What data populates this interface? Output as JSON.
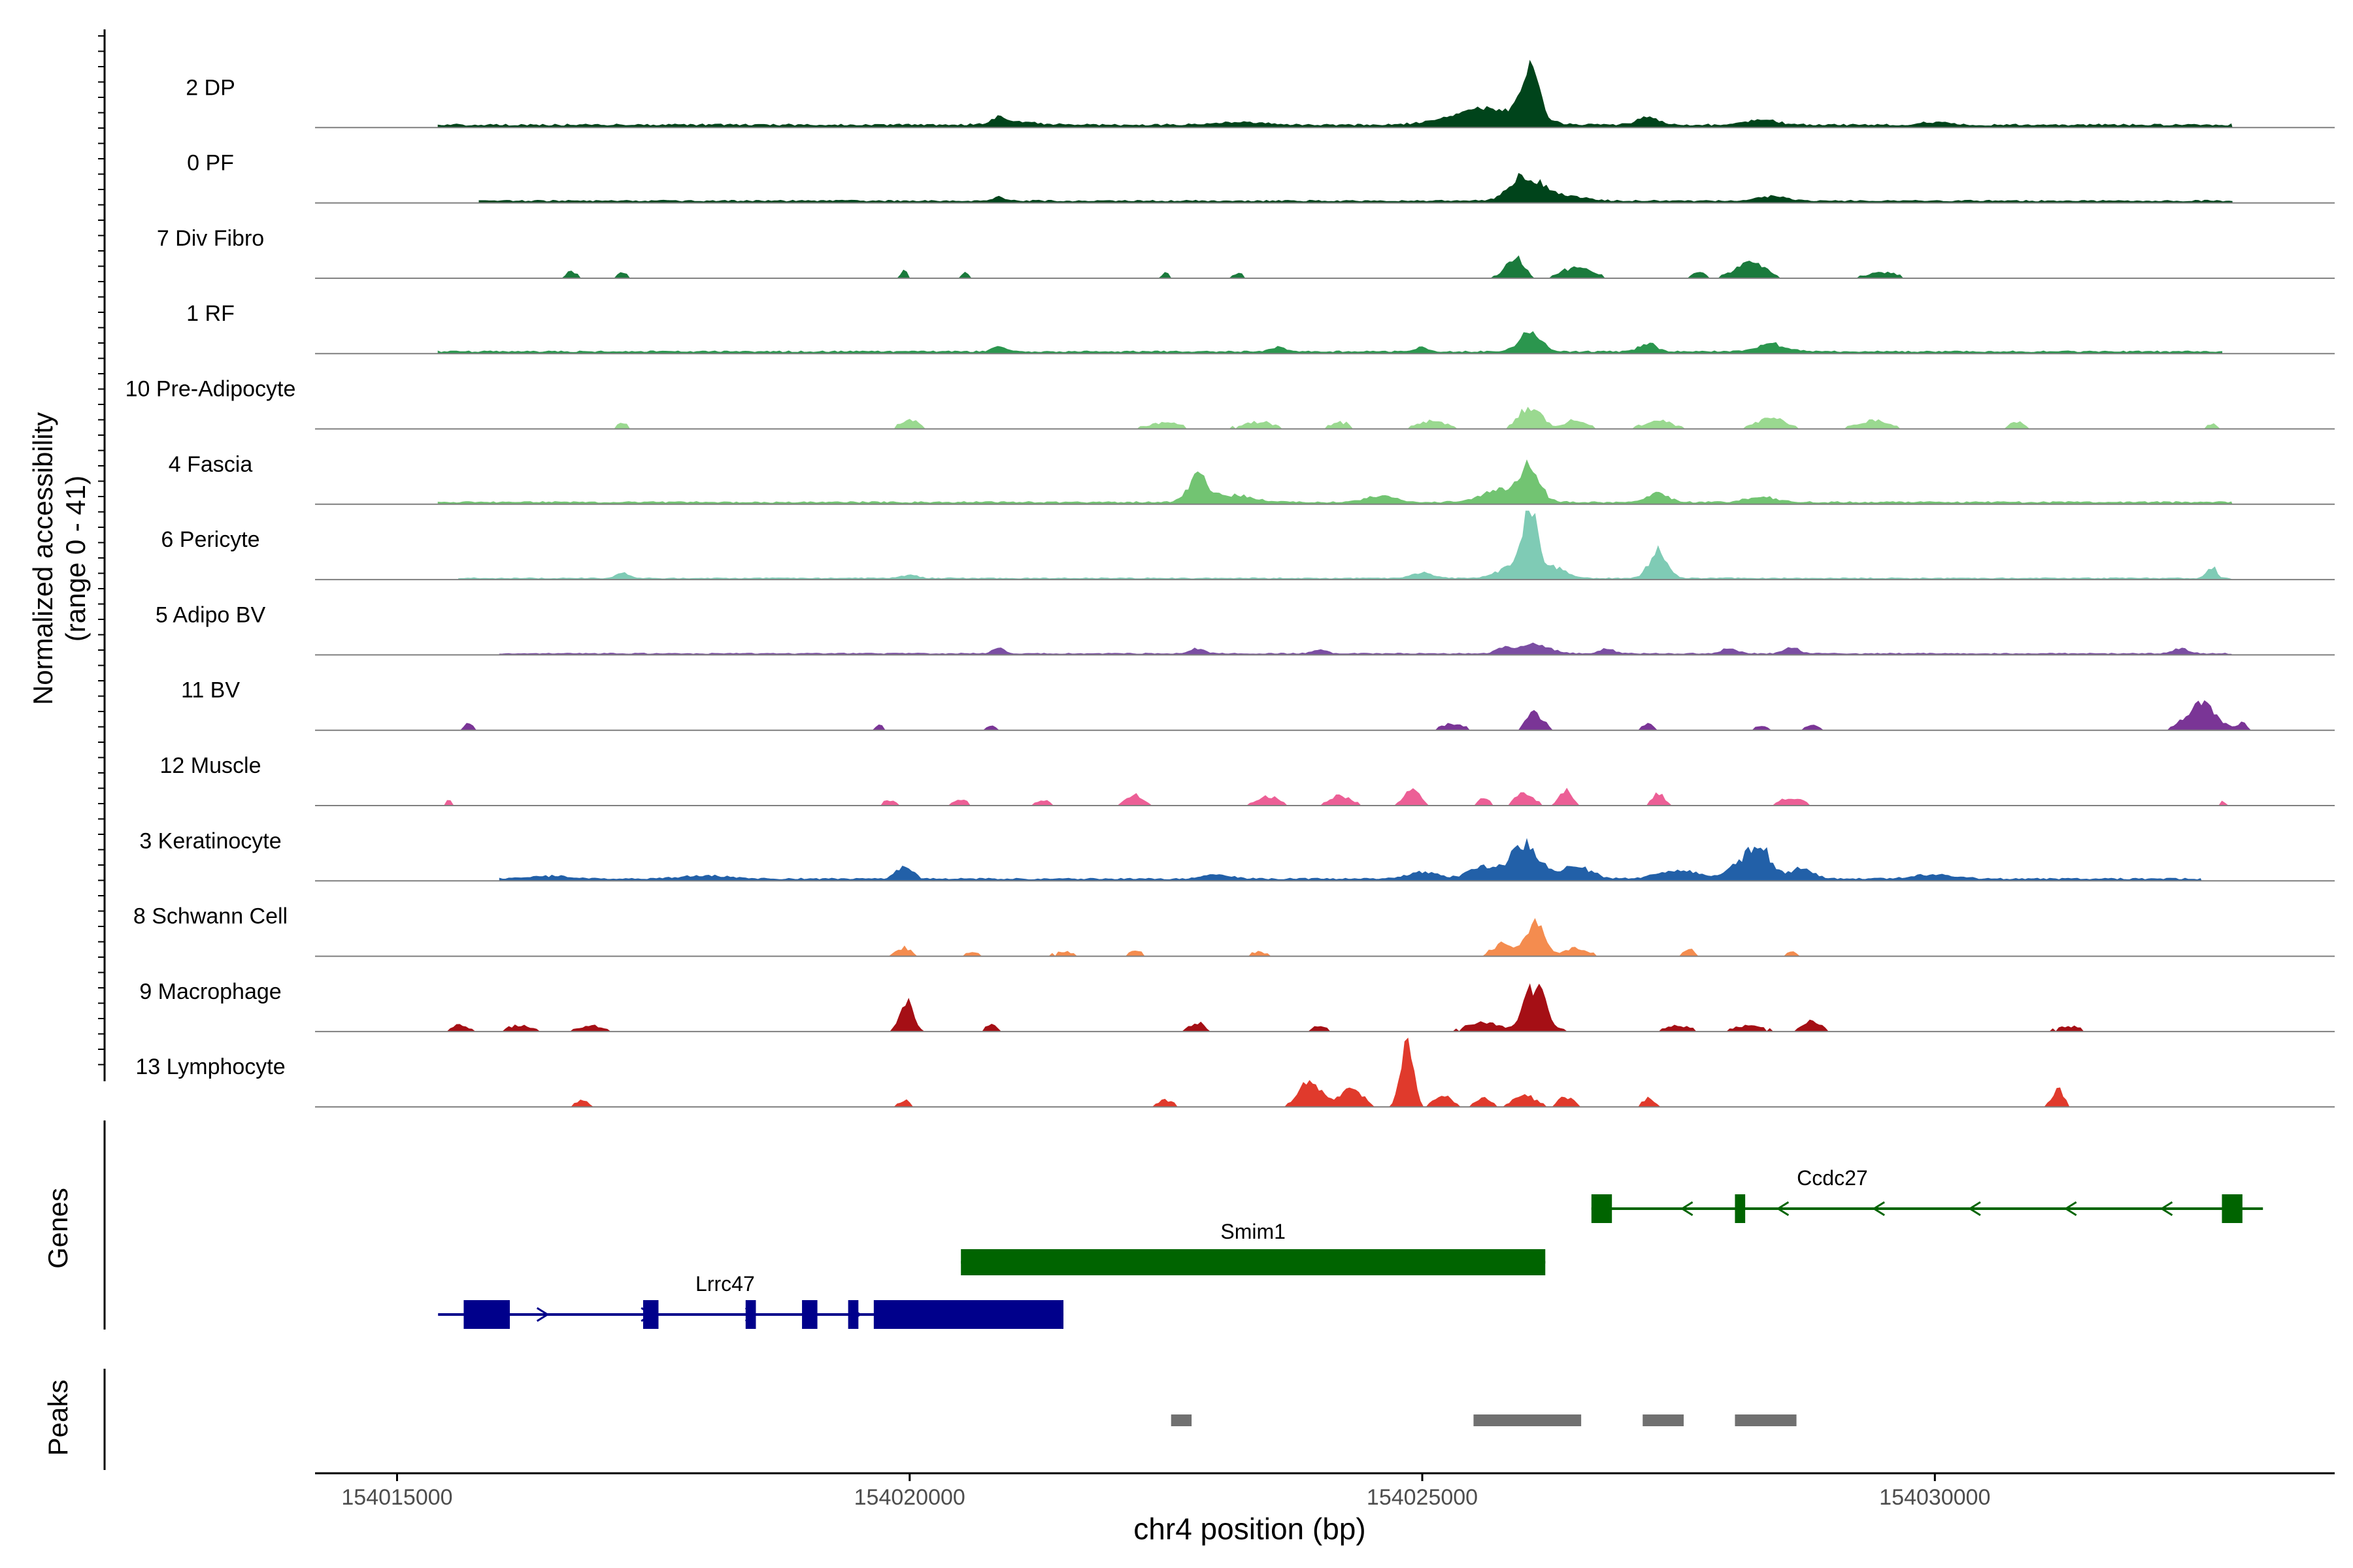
{
  "chart_data": {
    "type": "area",
    "chromosome": "chr4",
    "xlabel": "chr4 position (bp)",
    "ylabel": [
      "Normalized accessibility",
      "(range 0 - 41)"
    ],
    "y_range": [
      0,
      41
    ],
    "xlim": [
      154014200,
      154033900
    ],
    "x_ticks": [
      154015000,
      154020000,
      154025000,
      154030000
    ],
    "x_tick_labels": [
      "154015000",
      "154020000",
      "154025000",
      "154030000"
    ],
    "tracks": [
      {
        "name": "2 DP",
        "color": "#00441b",
        "style": "continuous",
        "base": 0.4,
        "peaks": [
          [
            154020870,
            0.9,
            70
          ],
          [
            154021000,
            0.5,
            300
          ],
          [
            154023200,
            0.4,
            400
          ],
          [
            154025500,
            1.0,
            400
          ],
          [
            154026050,
            7.5,
            120
          ],
          [
            154025700,
            1.5,
            500
          ],
          [
            154027200,
            1.2,
            150
          ],
          [
            154028300,
            0.9,
            200
          ],
          [
            154030000,
            0.4,
            200
          ]
        ],
        "range": [
          154015400,
          154032900
        ]
      },
      {
        "name": "0 PF",
        "color": "#00441b",
        "style": "continuous",
        "base": 0.3,
        "peaks": [
          [
            154020870,
            0.7,
            80
          ],
          [
            154026000,
            3.4,
            200
          ],
          [
            154026300,
            1.0,
            300
          ],
          [
            154028400,
            0.7,
            200
          ]
        ],
        "range": [
          154015800,
          154032900
        ]
      },
      {
        "name": "7 Div Fibro",
        "color": "#1a7a3c",
        "style": "segmented",
        "base": 0.2,
        "peaks": [
          [
            154016700,
            1.1,
            60
          ],
          [
            154017200,
            0.8,
            60
          ],
          [
            154019950,
            1.0,
            50
          ],
          [
            154020550,
            0.8,
            50
          ],
          [
            154022500,
            0.8,
            50
          ],
          [
            154023200,
            0.8,
            50
          ],
          [
            154025900,
            3.0,
            120
          ],
          [
            154026500,
            1.5,
            200
          ],
          [
            154027700,
            1.0,
            80
          ],
          [
            154028200,
            2.2,
            200
          ],
          [
            154029500,
            0.8,
            200
          ]
        ],
        "range": [
          154016400,
          154030600
        ]
      },
      {
        "name": "1 RF",
        "color": "#2b964e",
        "style": "continuous",
        "base": 0.3,
        "peaks": [
          [
            154020870,
            0.8,
            80
          ],
          [
            154023600,
            0.6,
            100
          ],
          [
            154025000,
            0.6,
            80
          ],
          [
            154026050,
            2.8,
            150
          ],
          [
            154027200,
            1.2,
            120
          ],
          [
            154028400,
            1.1,
            200
          ]
        ],
        "range": [
          154015400,
          154032800
        ]
      },
      {
        "name": "10 Pre-Adipocyte",
        "color": "#9ad990",
        "style": "segmented",
        "base": 0.2,
        "peaks": [
          [
            154017200,
            0.8,
            80
          ],
          [
            154020000,
            1.3,
            120
          ],
          [
            154022500,
            1.0,
            200
          ],
          [
            154023400,
            1.0,
            200
          ],
          [
            154024200,
            0.9,
            120
          ],
          [
            154025100,
            1.2,
            200
          ],
          [
            154026050,
            3.2,
            150
          ],
          [
            154026500,
            1.4,
            150
          ],
          [
            154027300,
            1.1,
            200
          ],
          [
            154028400,
            1.6,
            200
          ],
          [
            154029400,
            1.3,
            200
          ],
          [
            154030800,
            1.0,
            100
          ],
          [
            154032700,
            0.8,
            60
          ]
        ],
        "range": [
          154017000,
          154032900
        ]
      },
      {
        "name": "4 Fascia",
        "color": "#72c472",
        "style": "continuous",
        "base": 0.3,
        "peaks": [
          [
            154022800,
            3.6,
            120
          ],
          [
            154023100,
            1.2,
            300
          ],
          [
            154024600,
            1.0,
            200
          ],
          [
            154025800,
            1.8,
            300
          ],
          [
            154026050,
            4.8,
            130
          ],
          [
            154027300,
            1.3,
            150
          ],
          [
            154028300,
            0.8,
            200
          ]
        ],
        "range": [
          154015400,
          154032900
        ]
      },
      {
        "name": "6 Pericyte",
        "color": "#7fcbb5",
        "style": "continuous",
        "base": 0.2,
        "peaks": [
          [
            154017200,
            0.9,
            80
          ],
          [
            154020000,
            0.6,
            100
          ],
          [
            154025000,
            0.8,
            150
          ],
          [
            154025900,
            2.0,
            200
          ],
          [
            154026050,
            10.0,
            100
          ],
          [
            154026300,
            1.5,
            150
          ],
          [
            154027300,
            4.2,
            120
          ],
          [
            154032700,
            1.8,
            60
          ]
        ],
        "range": [
          154015600,
          154032900
        ]
      },
      {
        "name": "5 Adipo BV",
        "color": "#7b4ea3",
        "style": "continuous",
        "base": 0.2,
        "peaks": [
          [
            154020870,
            1.0,
            70
          ],
          [
            154022800,
            0.7,
            100
          ],
          [
            154024000,
            0.6,
            100
          ],
          [
            154025800,
            0.8,
            100
          ],
          [
            154026100,
            1.5,
            200
          ],
          [
            154026800,
            0.8,
            100
          ],
          [
            154028000,
            0.8,
            100
          ],
          [
            154028600,
            0.9,
            100
          ],
          [
            154032400,
            0.8,
            100
          ]
        ],
        "range": [
          154016000,
          154032900
        ]
      },
      {
        "name": "11 BV",
        "color": "#7a3596",
        "style": "segmented",
        "base": 0.0,
        "peaks": [
          [
            154015700,
            1.0,
            60
          ],
          [
            154019700,
            0.8,
            60
          ],
          [
            154020800,
            0.8,
            60
          ],
          [
            154025300,
            1.0,
            150
          ],
          [
            154026100,
            2.6,
            120
          ],
          [
            154027200,
            0.9,
            80
          ],
          [
            154028300,
            0.7,
            80
          ],
          [
            154028800,
            0.8,
            80
          ],
          [
            154032600,
            4.0,
            200
          ],
          [
            154033000,
            1.0,
            60
          ]
        ],
        "range": [
          154015500,
          154033100
        ]
      },
      {
        "name": "12 Muscle",
        "color": "#ec5f96",
        "style": "segmented",
        "base": 0.0,
        "peaks": [
          [
            154015500,
            0.8,
            40
          ],
          [
            154019800,
            0.8,
            80
          ],
          [
            154020500,
            0.8,
            100
          ],
          [
            154021300,
            0.8,
            100
          ],
          [
            154022200,
            1.5,
            120
          ],
          [
            154023500,
            1.3,
            150
          ],
          [
            154024200,
            1.5,
            150
          ],
          [
            154024900,
            2.8,
            100
          ],
          [
            154025600,
            1.2,
            80
          ],
          [
            154026000,
            2.0,
            120
          ],
          [
            154026400,
            2.5,
            80
          ],
          [
            154027300,
            1.8,
            80
          ],
          [
            154028600,
            1.2,
            150
          ],
          [
            154032800,
            0.6,
            40
          ]
        ],
        "range": [
          154015400,
          154032900
        ]
      },
      {
        "name": "3 Keratinocyte",
        "color": "#2260a8",
        "style": "continuous",
        "base": 0.3,
        "peaks": [
          [
            154019950,
            2.2,
            100
          ],
          [
            154016500,
            0.4,
            300
          ],
          [
            154018000,
            0.5,
            300
          ],
          [
            154023000,
            0.6,
            200
          ],
          [
            154025000,
            1.0,
            200
          ],
          [
            154025600,
            1.8,
            200
          ],
          [
            154026000,
            5.0,
            200
          ],
          [
            154026500,
            2.0,
            200
          ],
          [
            154027500,
            1.2,
            300
          ],
          [
            154028100,
            2.2,
            150
          ],
          [
            154028300,
            4.6,
            150
          ],
          [
            154028700,
            1.6,
            150
          ],
          [
            154030000,
            0.6,
            300
          ]
        ],
        "range": [
          154016000,
          154032600
        ]
      },
      {
        "name": "8 Schwann Cell",
        "color": "#f48c4f",
        "style": "segmented",
        "base": 0.2,
        "peaks": [
          [
            154019950,
            1.2,
            100
          ],
          [
            154020600,
            0.6,
            100
          ],
          [
            154021500,
            0.7,
            100
          ],
          [
            154022200,
            0.7,
            100
          ],
          [
            154023400,
            0.6,
            100
          ],
          [
            154025800,
            1.8,
            150
          ],
          [
            154026100,
            5.2,
            120
          ],
          [
            154026500,
            1.2,
            150
          ],
          [
            154027600,
            1.0,
            80
          ],
          [
            154028600,
            0.7,
            60
          ]
        ],
        "range": [
          154015600,
          154030500
        ]
      },
      {
        "name": "9 Macrophage",
        "color": "#a50f15",
        "style": "segmented",
        "base": 0.2,
        "peaks": [
          [
            154015600,
            1.1,
            100
          ],
          [
            154016200,
            0.9,
            150
          ],
          [
            154016900,
            0.8,
            150
          ],
          [
            154019970,
            4.2,
            90
          ],
          [
            154020800,
            1.0,
            80
          ],
          [
            154022800,
            1.2,
            100
          ],
          [
            154024000,
            0.8,
            100
          ],
          [
            154025600,
            1.4,
            200
          ],
          [
            154026100,
            6.5,
            150
          ],
          [
            154027500,
            0.8,
            150
          ],
          [
            154028200,
            0.8,
            200
          ],
          [
            154028800,
            1.6,
            120
          ],
          [
            154031300,
            0.7,
            150
          ]
        ],
        "range": [
          154015400,
          154031700
        ]
      },
      {
        "name": "13 Lymphocyte",
        "color": "#e03a2c",
        "style": "segmented",
        "base": 0.0,
        "peaks": [
          [
            154016800,
            1.0,
            80
          ],
          [
            154019950,
            1.0,
            80
          ],
          [
            154022500,
            1.0,
            100
          ],
          [
            154023900,
            3.8,
            150
          ],
          [
            154024300,
            3.0,
            150
          ],
          [
            154024850,
            11.0,
            80
          ],
          [
            154025200,
            1.6,
            120
          ],
          [
            154025600,
            1.4,
            100
          ],
          [
            154026000,
            1.7,
            150
          ],
          [
            154026400,
            1.5,
            100
          ],
          [
            154027200,
            1.2,
            80
          ],
          [
            154031200,
            2.5,
            80
          ]
        ],
        "range": [
          154016700,
          154031400
        ]
      }
    ],
    "genes": [
      {
        "name": "Lrrc47",
        "strand": "+",
        "color": "#00008b",
        "start": 154015400,
        "end": 154021500,
        "exons": [
          [
            154015650,
            154016100
          ],
          [
            154017400,
            154017550
          ],
          [
            154018400,
            154018500
          ],
          [
            154018950,
            154019100
          ],
          [
            154019400,
            154019500
          ],
          [
            154019650,
            154021500
          ]
        ]
      },
      {
        "name": "Smim1",
        "strand": "+",
        "color": "#006400",
        "start": 154020500,
        "end": 154026200,
        "exons": [
          [
            154020500,
            154026200
          ]
        ]
      },
      {
        "name": "Ccdc27",
        "strand": "-",
        "color": "#006400",
        "start": 154026650,
        "end": 154033200,
        "exons": [
          [
            154026650,
            154026850
          ],
          [
            154028050,
            154028150
          ],
          [
            154032800,
            154033000
          ]
        ]
      }
    ],
    "peaks_track": {
      "color": "#707070",
      "regions": [
        [
          154022550,
          154022750
        ],
        [
          154025500,
          154026550
        ],
        [
          154027150,
          154027550
        ],
        [
          154028050,
          154028650
        ]
      ]
    },
    "panel_labels": {
      "genes": "Genes",
      "peaks": "Peaks"
    }
  }
}
